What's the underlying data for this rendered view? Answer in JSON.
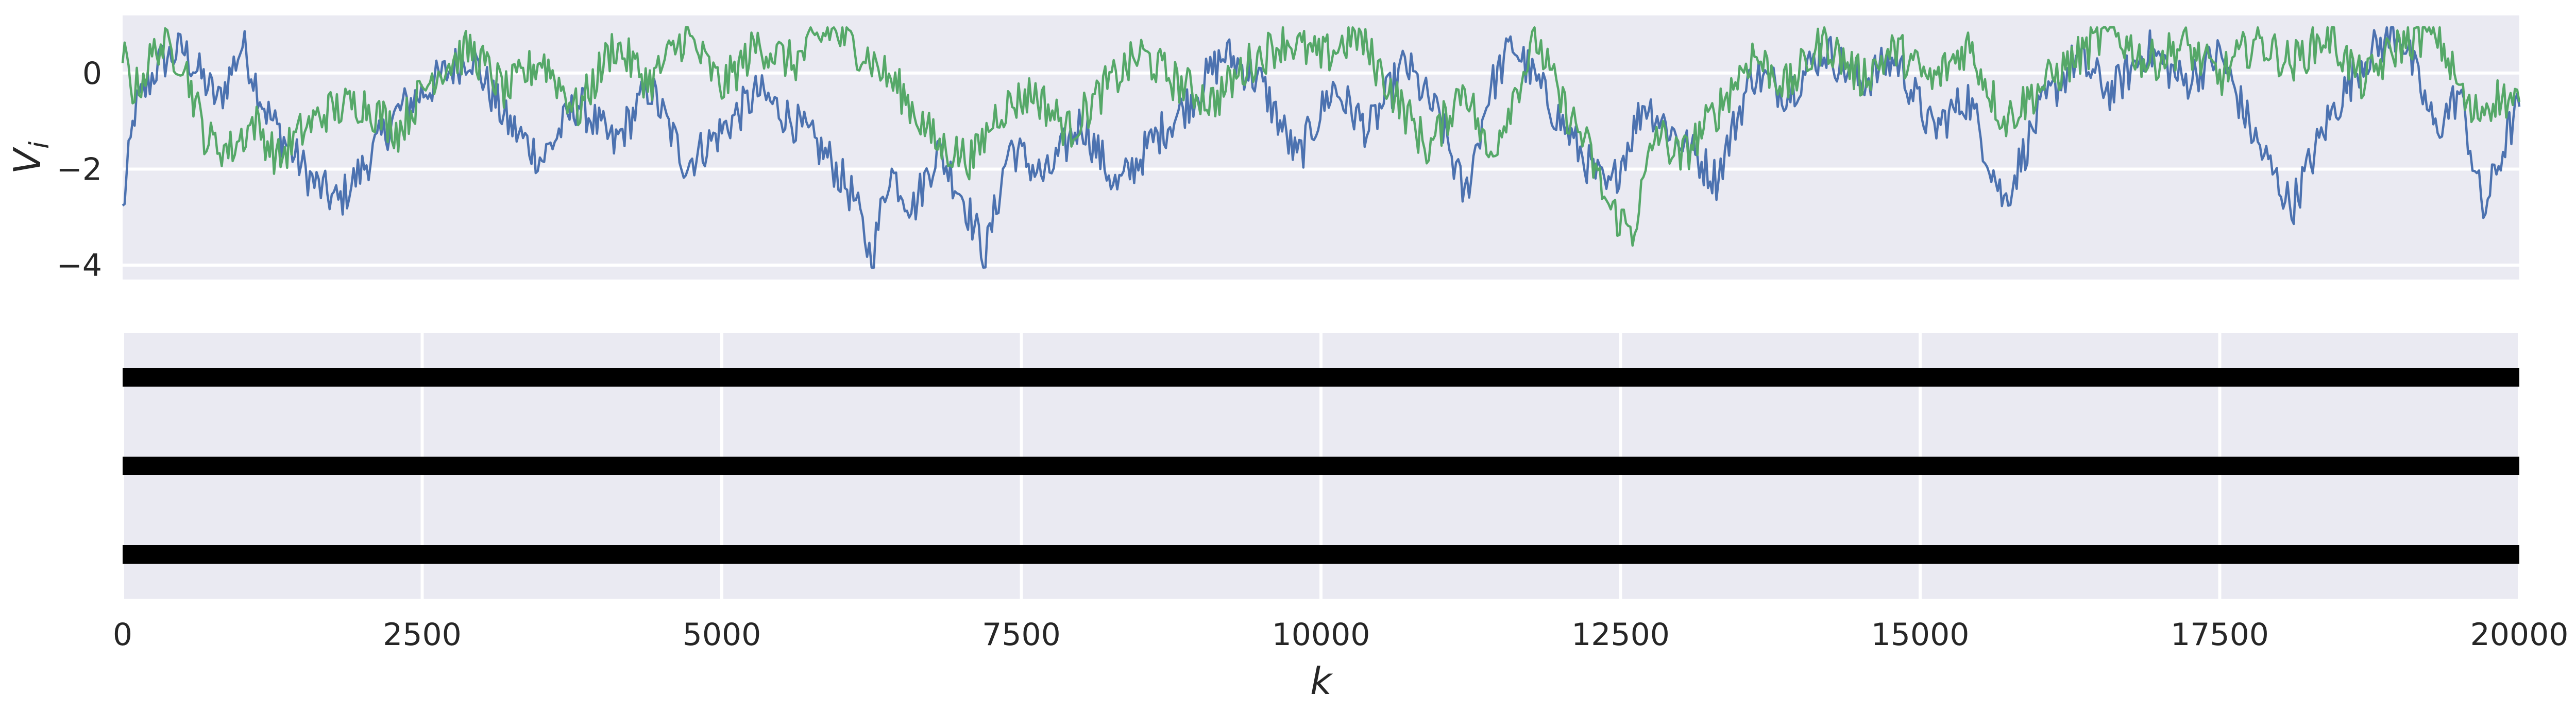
{
  "chart_data": [
    {
      "type": "line",
      "ylabel": "V",
      "ylabel_subscript": "i",
      "xlim": [
        0,
        20000
      ],
      "ylim": [
        -4.3,
        1.2
      ],
      "yticks": [
        0,
        -2,
        -4
      ],
      "ytick_labels": [
        "0",
        "−2",
        "−4"
      ],
      "grid": true,
      "background": "#eaeaf2",
      "series": [
        {
          "color": "#4c72b0",
          "x": [
            0,
            100,
            300,
            500,
            800,
            1000,
            1200,
            1400,
            1600,
            1800,
            2000,
            2300,
            2600,
            2900,
            3200,
            3500,
            3800,
            4100,
            4400,
            4700,
            5000,
            5300,
            5600,
            5900,
            6100,
            6250,
            6400,
            6600,
            6800,
            7000,
            7200,
            7400,
            7700,
            8000,
            8300,
            8600,
            8900,
            9200,
            9500,
            9800,
            10100,
            10400,
            10700,
            11000,
            11200,
            11400,
            11600,
            11800,
            12000,
            12200,
            12400,
            12700,
            13000,
            13300,
            13600,
            13900,
            14200,
            14500,
            14800,
            15100,
            15400,
            15700,
            16000,
            16300,
            16600,
            16900,
            17200,
            17500,
            17800,
            18100,
            18400,
            18700,
            19000,
            19300,
            19500,
            19700,
            19900,
            20000
          ],
          "y": [
            -2.9,
            -0.8,
            0.2,
            0.5,
            -0.6,
            0.6,
            -0.8,
            -1.6,
            -2.3,
            -2.7,
            -2.0,
            -0.8,
            -0.2,
            0.4,
            -1.0,
            -1.8,
            -0.6,
            -1.5,
            -0.3,
            -1.9,
            -1.2,
            -0.4,
            -1.0,
            -1.8,
            -2.6,
            -3.9,
            -2.0,
            -2.8,
            -1.6,
            -2.5,
            -3.8,
            -1.5,
            -2.2,
            -1.0,
            -2.4,
            -1.4,
            -0.6,
            0.4,
            -0.2,
            -1.8,
            -0.3,
            -1.2,
            0.2,
            -1.0,
            -2.6,
            -0.4,
            0.6,
            -0.2,
            -1.0,
            -1.8,
            -2.5,
            -0.6,
            -1.4,
            -2.2,
            0.0,
            -0.4,
            0.5,
            -0.2,
            0.3,
            -1.2,
            -0.5,
            -2.7,
            -0.8,
            0.3,
            -0.4,
            0.5,
            -0.2,
            0.4,
            -1.4,
            -2.8,
            -1.0,
            0.3,
            0.9,
            -1.2,
            -0.4,
            -2.9,
            -1.3,
            -0.7
          ]
        },
        {
          "color": "#55a868",
          "x": [
            0,
            100,
            300,
            500,
            700,
            900,
            1100,
            1300,
            1500,
            1700,
            2000,
            2300,
            2600,
            2900,
            3200,
            3500,
            3800,
            4100,
            4400,
            4700,
            5000,
            5300,
            5600,
            5900,
            6200,
            6500,
            6800,
            7100,
            7300,
            7600,
            7900,
            8200,
            8500,
            8800,
            9100,
            9400,
            9700,
            10000,
            10300,
            10600,
            10900,
            11200,
            11400,
            11600,
            11800,
            12000,
            12200,
            12400,
            12600,
            12800,
            13000,
            13300,
            13600,
            13900,
            14200,
            14500,
            14800,
            15100,
            15400,
            15700,
            16000,
            16300,
            16600,
            16900,
            17200,
            17500,
            17800,
            18100,
            18400,
            18700,
            19000,
            19300,
            19600,
            19800,
            20000
          ],
          "y": [
            0.4,
            -0.4,
            0.6,
            0.3,
            -1.4,
            -1.6,
            -1.0,
            -1.8,
            -1.2,
            -0.8,
            -0.6,
            -1.2,
            0.0,
            0.5,
            -0.4,
            0.3,
            -0.8,
            0.6,
            -0.2,
            0.8,
            -0.3,
            0.6,
            0.2,
            0.9,
            0.4,
            -0.4,
            -1.5,
            -1.8,
            -0.8,
            -0.4,
            -1.2,
            -0.3,
            0.4,
            -0.2,
            -0.6,
            0.2,
            0.7,
            0.3,
            0.8,
            -0.4,
            -1.6,
            -0.2,
            -1.8,
            -0.5,
            0.7,
            -0.6,
            -1.4,
            -2.8,
            -3.3,
            -1.2,
            -1.8,
            -0.8,
            0.4,
            -0.3,
            0.7,
            -0.1,
            0.5,
            -0.2,
            0.6,
            -1.0,
            -0.3,
            0.3,
            0.9,
            0.2,
            0.6,
            -0.1,
            0.7,
            0.2,
            0.8,
            -0.2,
            0.6,
            0.9,
            -0.9,
            -0.5,
            -0.6
          ]
        }
      ]
    },
    {
      "type": "event",
      "xlabel": "k",
      "xlim": [
        0,
        20000
      ],
      "xticks": [
        0,
        2500,
        5000,
        7500,
        10000,
        12500,
        15000,
        17500,
        20000
      ],
      "xtick_labels": [
        "0",
        "2500",
        "5000",
        "7500",
        "10000",
        "12500",
        "15000",
        "17500",
        "20000"
      ],
      "grid": true,
      "background": "#eaeaf2",
      "rows": 3,
      "bar_color": "#000000",
      "bars": [
        {
          "row": 1,
          "x_start": 0,
          "x_end": 20000
        },
        {
          "row": 2,
          "x_start": 0,
          "x_end": 20000
        },
        {
          "row": 3,
          "x_start": 0,
          "x_end": 20000
        }
      ]
    }
  ]
}
